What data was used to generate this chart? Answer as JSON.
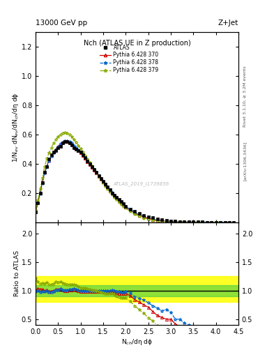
{
  "title_top": "13000 GeV pp",
  "title_right": "Z+Jet",
  "main_title": "Nch (ATLAS UE in Z production)",
  "ylabel_main": "1/N$_{ev}$ dN$_{ev}$/dN$_{ch}$/dη dϕ",
  "ylabel_ratio": "Ratio to ATLAS",
  "xlabel": "N$_{ch}$/dη dϕ",
  "right_label_top": "Rivet 3.1.10, ≥ 3.2M events",
  "right_label_bot": "[arXiv:1306.3436]",
  "watermark": "ATLAS_2019_I1739856",
  "atlas_x": [
    0.0,
    0.05,
    0.1,
    0.15,
    0.2,
    0.25,
    0.3,
    0.35,
    0.4,
    0.45,
    0.5,
    0.55,
    0.6,
    0.65,
    0.7,
    0.75,
    0.8,
    0.85,
    0.9,
    0.95,
    1.0,
    1.05,
    1.1,
    1.15,
    1.2,
    1.25,
    1.3,
    1.35,
    1.4,
    1.45,
    1.5,
    1.55,
    1.6,
    1.65,
    1.7,
    1.75,
    1.8,
    1.85,
    1.9,
    1.95,
    2.0,
    2.1,
    2.2,
    2.3,
    2.4,
    2.5,
    2.6,
    2.7,
    2.8,
    2.9,
    3.0,
    3.1,
    3.2,
    3.3,
    3.4,
    3.5,
    3.6,
    3.7,
    3.8,
    3.9,
    4.0,
    4.1,
    4.2,
    4.3,
    4.4
  ],
  "atlas_y": [
    0.07,
    0.13,
    0.2,
    0.27,
    0.34,
    0.38,
    0.43,
    0.46,
    0.48,
    0.49,
    0.51,
    0.52,
    0.54,
    0.55,
    0.55,
    0.54,
    0.53,
    0.51,
    0.5,
    0.49,
    0.48,
    0.46,
    0.44,
    0.42,
    0.4,
    0.38,
    0.36,
    0.34,
    0.32,
    0.3,
    0.28,
    0.26,
    0.24,
    0.22,
    0.2,
    0.185,
    0.17,
    0.155,
    0.14,
    0.125,
    0.11,
    0.09,
    0.075,
    0.06,
    0.048,
    0.038,
    0.03,
    0.023,
    0.017,
    0.012,
    0.008,
    0.006,
    0.004,
    0.003,
    0.002,
    0.0015,
    0.001,
    0.0008,
    0.0005,
    0.0003,
    0.0002,
    0.00015,
    0.0001,
    7e-05,
    4e-05
  ],
  "py370_x": [
    0.0,
    0.05,
    0.1,
    0.15,
    0.2,
    0.25,
    0.3,
    0.35,
    0.4,
    0.45,
    0.5,
    0.55,
    0.6,
    0.65,
    0.7,
    0.75,
    0.8,
    0.85,
    0.9,
    0.95,
    1.0,
    1.05,
    1.1,
    1.15,
    1.2,
    1.25,
    1.3,
    1.35,
    1.4,
    1.45,
    1.5,
    1.55,
    1.6,
    1.65,
    1.7,
    1.75,
    1.8,
    1.85,
    1.9,
    1.95,
    2.0,
    2.1,
    2.2,
    2.3,
    2.4,
    2.5,
    2.6,
    2.7,
    2.8,
    2.9,
    3.0,
    3.1,
    3.2,
    3.3,
    3.4,
    3.5,
    3.6,
    3.7,
    3.8,
    3.9,
    4.0,
    4.1,
    4.2
  ],
  "py370_y": [
    0.07,
    0.135,
    0.205,
    0.275,
    0.34,
    0.385,
    0.425,
    0.455,
    0.48,
    0.5,
    0.52,
    0.535,
    0.545,
    0.55,
    0.55,
    0.545,
    0.535,
    0.52,
    0.505,
    0.49,
    0.475,
    0.455,
    0.435,
    0.415,
    0.395,
    0.375,
    0.355,
    0.335,
    0.315,
    0.295,
    0.275,
    0.255,
    0.235,
    0.215,
    0.197,
    0.18,
    0.163,
    0.148,
    0.133,
    0.118,
    0.105,
    0.082,
    0.063,
    0.048,
    0.036,
    0.027,
    0.019,
    0.013,
    0.009,
    0.006,
    0.004,
    0.0025,
    0.0015,
    0.001,
    0.0006,
    0.0004,
    0.00025,
    0.00015,
    0.0001,
    6e-05,
    3e-05,
    2e-05,
    1e-05
  ],
  "py378_x": [
    0.0,
    0.05,
    0.1,
    0.15,
    0.2,
    0.25,
    0.3,
    0.35,
    0.4,
    0.45,
    0.5,
    0.55,
    0.6,
    0.65,
    0.7,
    0.75,
    0.8,
    0.85,
    0.9,
    0.95,
    1.0,
    1.05,
    1.1,
    1.15,
    1.2,
    1.25,
    1.3,
    1.35,
    1.4,
    1.45,
    1.5,
    1.55,
    1.6,
    1.65,
    1.7,
    1.75,
    1.8,
    1.85,
    1.9,
    1.95,
    2.0,
    2.1,
    2.2,
    2.3,
    2.4,
    2.5,
    2.6,
    2.7,
    2.8,
    2.9,
    3.0,
    3.1,
    3.2,
    3.3,
    3.4,
    3.5,
    3.6,
    3.7,
    3.8,
    3.9,
    4.0,
    4.1,
    4.2,
    4.3
  ],
  "py378_y": [
    0.07,
    0.13,
    0.195,
    0.265,
    0.335,
    0.38,
    0.42,
    0.45,
    0.475,
    0.495,
    0.515,
    0.535,
    0.545,
    0.555,
    0.555,
    0.55,
    0.54,
    0.525,
    0.51,
    0.495,
    0.48,
    0.46,
    0.44,
    0.42,
    0.4,
    0.38,
    0.36,
    0.34,
    0.32,
    0.3,
    0.28,
    0.26,
    0.24,
    0.22,
    0.202,
    0.185,
    0.168,
    0.152,
    0.137,
    0.122,
    0.109,
    0.086,
    0.067,
    0.052,
    0.04,
    0.03,
    0.022,
    0.016,
    0.011,
    0.008,
    0.005,
    0.003,
    0.002,
    0.0013,
    0.0008,
    0.0005,
    0.0003,
    0.0002,
    0.00012,
    7e-05,
    4e-05,
    2e-05,
    1e-05,
    6e-06
  ],
  "py379_x": [
    0.0,
    0.05,
    0.1,
    0.15,
    0.2,
    0.25,
    0.3,
    0.35,
    0.4,
    0.45,
    0.5,
    0.55,
    0.6,
    0.65,
    0.7,
    0.75,
    0.8,
    0.85,
    0.9,
    0.95,
    1.0,
    1.05,
    1.1,
    1.15,
    1.2,
    1.25,
    1.3,
    1.35,
    1.4,
    1.45,
    1.5,
    1.55,
    1.6,
    1.65,
    1.7,
    1.75,
    1.8,
    1.85,
    1.9,
    1.95,
    2.0,
    2.1,
    2.2,
    2.3,
    2.4,
    2.5,
    2.6,
    2.7,
    2.8,
    2.9,
    3.0,
    3.1,
    3.2,
    3.3,
    3.4,
    3.5,
    3.6,
    3.7,
    3.8,
    3.9,
    4.0,
    4.1,
    4.2
  ],
  "py379_y": [
    0.085,
    0.15,
    0.225,
    0.305,
    0.38,
    0.435,
    0.475,
    0.51,
    0.54,
    0.565,
    0.585,
    0.6,
    0.61,
    0.615,
    0.61,
    0.6,
    0.585,
    0.565,
    0.545,
    0.525,
    0.505,
    0.482,
    0.458,
    0.434,
    0.41,
    0.386,
    0.362,
    0.338,
    0.315,
    0.292,
    0.27,
    0.248,
    0.228,
    0.208,
    0.189,
    0.171,
    0.154,
    0.138,
    0.123,
    0.109,
    0.096,
    0.073,
    0.055,
    0.04,
    0.029,
    0.02,
    0.014,
    0.009,
    0.006,
    0.004,
    0.0023,
    0.0014,
    0.0008,
    0.0005,
    0.0003,
    0.0002,
    0.00011,
    6e-05,
    3e-05,
    1.5e-05,
    7e-06,
    3e-06,
    1.2e-06
  ],
  "xlim": [
    0.0,
    4.5
  ],
  "ylim_main": [
    0.0,
    1.3
  ],
  "ylim_ratio": [
    0.4,
    2.2
  ],
  "yticks_main": [
    0.2,
    0.4,
    0.6,
    0.8,
    1.0,
    1.2
  ],
  "yticks_ratio": [
    0.5,
    1.0,
    1.5,
    2.0
  ],
  "xticks": [
    0.0,
    0.5,
    1.0,
    1.5,
    2.0,
    2.5,
    3.0,
    3.5,
    4.0,
    4.5
  ],
  "color_atlas": "#000000",
  "color_py370": "#cc0000",
  "color_py378": "#0066cc",
  "color_py379": "#88aa00",
  "band_yellow_low": 0.8,
  "band_yellow_high": 1.25,
  "band_green_low": 0.9,
  "band_green_high": 1.1
}
